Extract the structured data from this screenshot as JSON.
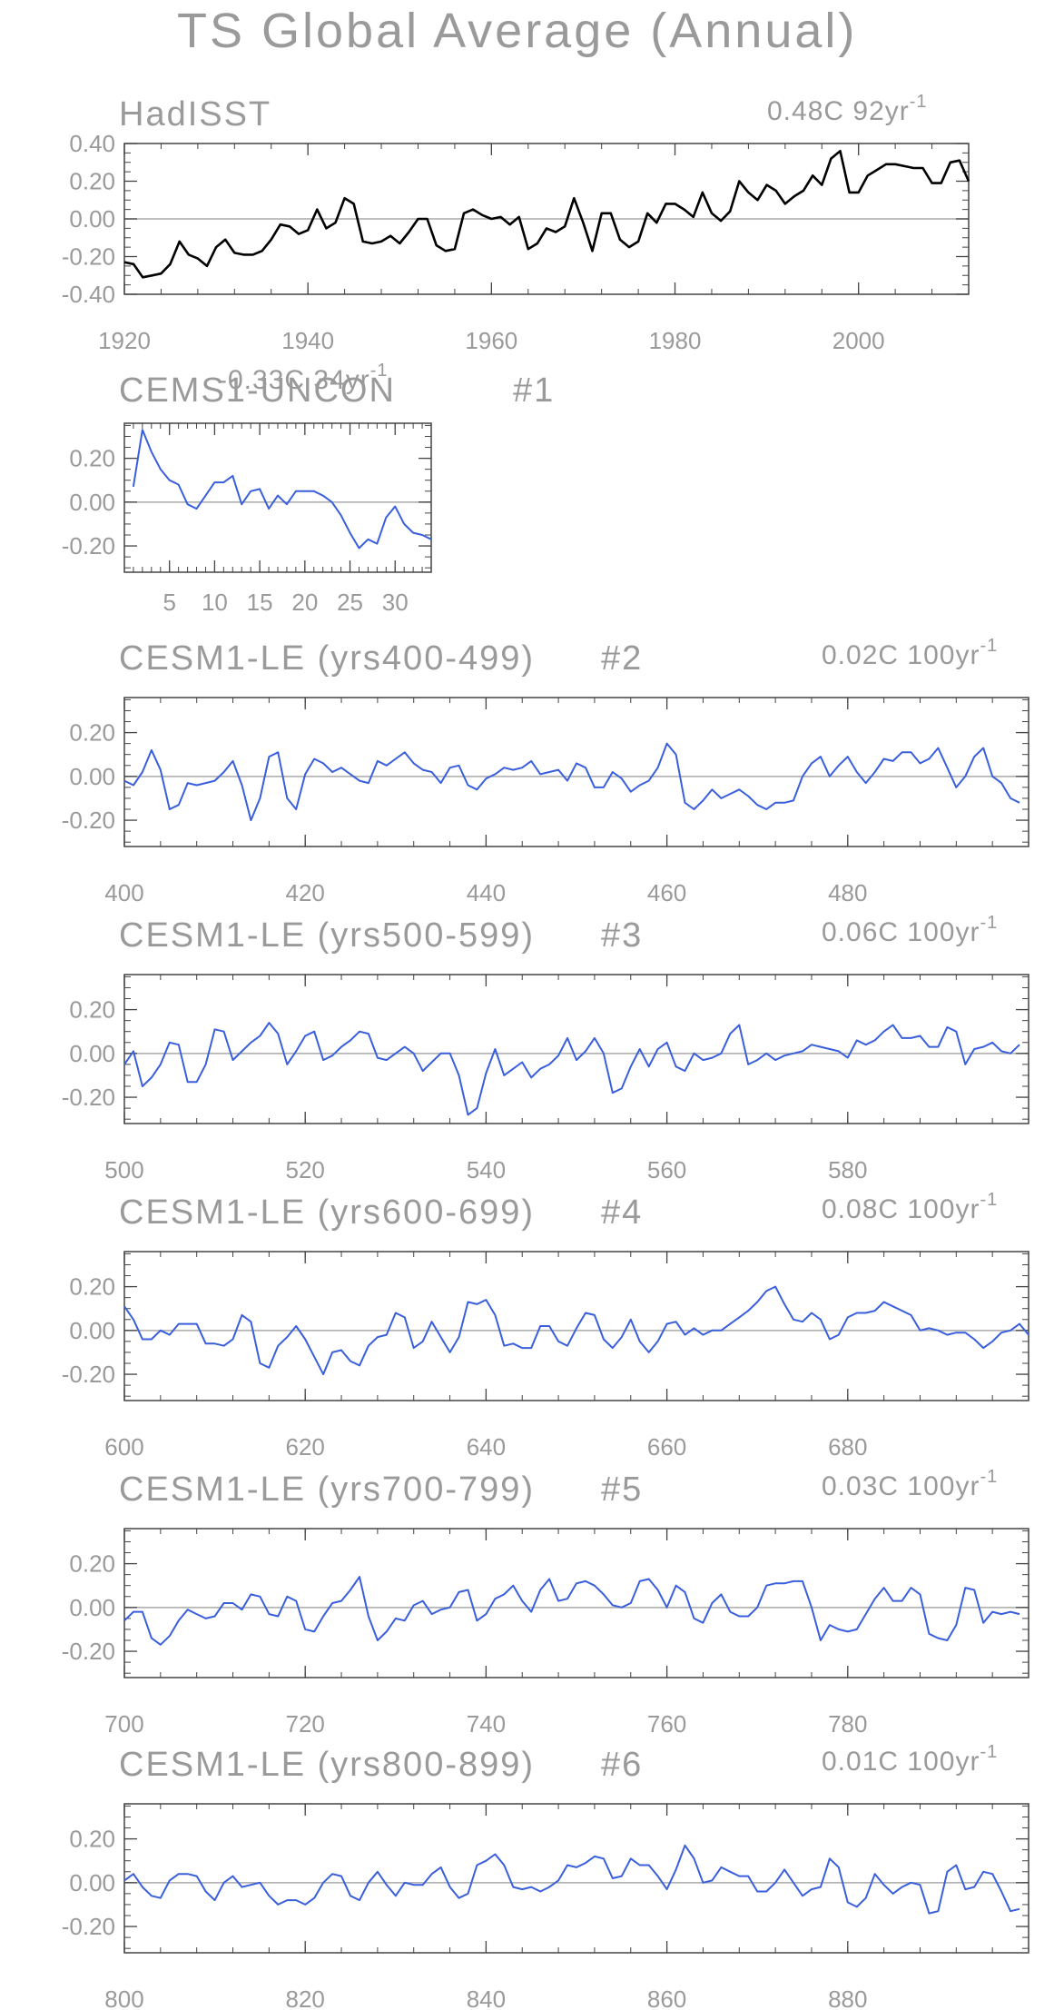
{
  "title": "TS Global Average (Annual)",
  "colors": {
    "observed_line": "#000000",
    "model_line": "#3a5fdc",
    "axis_text": "#9a9a9a",
    "frame": "#444444",
    "zero_line": "#aaaaaa"
  },
  "chart_data": [
    {
      "type": "line",
      "title": "HadISST",
      "trend": "0.48C 92yr",
      "trend_sup": "-1",
      "xlim": [
        1920,
        2012
      ],
      "ylim": [
        -0.4,
        0.4
      ],
      "xticks": [
        1920,
        1940,
        1960,
        1980,
        2000
      ],
      "yticks": [
        -0.4,
        -0.2,
        0.0,
        0.2,
        0.4
      ],
      "ytick_labels": [
        "-0.40",
        "-0.20",
        "0.00",
        "0.20",
        "0.40"
      ],
      "x_start": 1920,
      "values": [
        -0.23,
        -0.24,
        -0.31,
        -0.3,
        -0.29,
        -0.24,
        -0.12,
        -0.19,
        -0.21,
        -0.25,
        -0.15,
        -0.11,
        -0.18,
        -0.19,
        -0.19,
        -0.17,
        -0.11,
        -0.03,
        -0.04,
        -0.08,
        -0.06,
        0.05,
        -0.05,
        -0.02,
        0.11,
        0.08,
        -0.12,
        -0.13,
        -0.12,
        -0.09,
        -0.13,
        -0.07,
        0.0,
        0.0,
        -0.14,
        -0.17,
        -0.16,
        0.03,
        0.05,
        0.02,
        0.0,
        0.01,
        -0.03,
        0.01,
        -0.16,
        -0.13,
        -0.05,
        -0.07,
        -0.04,
        0.11,
        -0.02,
        -0.17,
        0.03,
        0.03,
        -0.11,
        -0.15,
        -0.12,
        0.03,
        -0.02,
        0.08,
        0.08,
        0.05,
        0.01,
        0.14,
        0.03,
        -0.01,
        0.04,
        0.2,
        0.14,
        0.1,
        0.18,
        0.15,
        0.08,
        0.12,
        0.15,
        0.23,
        0.18,
        0.32,
        0.36,
        0.14,
        0.14,
        0.23,
        0.26,
        0.29,
        0.29,
        0.28,
        0.27,
        0.27,
        0.19,
        0.19,
        0.3,
        0.31,
        0.2
      ]
    },
    {
      "type": "line",
      "title": "CEMS1-UNCON",
      "trend": "-0.33C 34yr",
      "trend_sup": "-1",
      "member": "#1",
      "xlim": [
        0,
        34
      ],
      "ylim": [
        -0.32,
        0.36
      ],
      "xticks": [
        5,
        10,
        15,
        20,
        25,
        30
      ],
      "yticks": [
        -0.2,
        0.0,
        0.2
      ],
      "ytick_labels": [
        "-0.20",
        "0.00",
        "0.20"
      ],
      "x_start": 1,
      "values": [
        0.07,
        0.33,
        0.23,
        0.15,
        0.1,
        0.08,
        -0.01,
        -0.03,
        0.03,
        0.09,
        0.09,
        0.12,
        -0.01,
        0.05,
        0.06,
        -0.03,
        0.03,
        -0.01,
        0.05,
        0.05,
        0.05,
        0.03,
        0.0,
        -0.06,
        -0.14,
        -0.21,
        -0.17,
        -0.19,
        -0.07,
        -0.02,
        -0.1,
        -0.14,
        -0.15,
        -0.17
      ]
    },
    {
      "type": "line",
      "title": "CESM1-LE (yrs400-499)",
      "member": "#2",
      "trend": "0.02C 100yr",
      "trend_sup": "-1",
      "xlim": [
        400,
        500
      ],
      "ylim": [
        -0.32,
        0.36
      ],
      "xticks": [
        400,
        420,
        440,
        460,
        480
      ],
      "yticks": [
        -0.2,
        0.0,
        0.2
      ],
      "ytick_labels": [
        "-0.20",
        "0.00",
        "0.20"
      ],
      "x_start": 400,
      "values": [
        -0.02,
        -0.04,
        0.02,
        0.12,
        0.03,
        -0.15,
        -0.13,
        -0.03,
        -0.04,
        -0.03,
        -0.02,
        0.02,
        0.07,
        -0.04,
        -0.2,
        -0.1,
        0.09,
        0.11,
        -0.1,
        -0.15,
        0.01,
        0.08,
        0.06,
        0.02,
        0.04,
        0.01,
        -0.02,
        -0.03,
        0.07,
        0.05,
        0.08,
        0.11,
        0.06,
        0.03,
        0.02,
        -0.03,
        0.04,
        0.05,
        -0.04,
        -0.06,
        -0.01,
        0.01,
        0.04,
        0.03,
        0.04,
        0.07,
        0.01,
        0.02,
        0.03,
        -0.02,
        0.06,
        0.04,
        -0.05,
        -0.05,
        0.02,
        -0.01,
        -0.07,
        -0.04,
        -0.02,
        0.04,
        0.15,
        0.1,
        -0.12,
        -0.15,
        -0.11,
        -0.06,
        -0.1,
        -0.08,
        -0.06,
        -0.09,
        -0.13,
        -0.15,
        -0.12,
        -0.12,
        -0.11,
        0.0,
        0.06,
        0.09,
        0.0,
        0.05,
        0.09,
        0.02,
        -0.03,
        0.02,
        0.08,
        0.07,
        0.11,
        0.11,
        0.06,
        0.08,
        0.13,
        0.04,
        -0.05,
        0.0,
        0.09,
        0.13,
        0.0,
        -0.03,
        -0.1,
        -0.12
      ]
    },
    {
      "type": "line",
      "title": "CESM1-LE (yrs500-599)",
      "member": "#3",
      "trend": "0.06C 100yr",
      "trend_sup": "-1",
      "xlim": [
        500,
        600
      ],
      "ylim": [
        -0.32,
        0.36
      ],
      "xticks": [
        500,
        520,
        540,
        560,
        580
      ],
      "yticks": [
        -0.2,
        0.0,
        0.2
      ],
      "ytick_labels": [
        "-0.20",
        "0.00",
        "0.20"
      ],
      "x_start": 500,
      "values": [
        -0.05,
        0.01,
        -0.15,
        -0.11,
        -0.05,
        0.05,
        0.04,
        -0.13,
        -0.13,
        -0.05,
        0.11,
        0.1,
        -0.03,
        0.01,
        0.05,
        0.08,
        0.14,
        0.09,
        -0.05,
        0.01,
        0.08,
        0.1,
        -0.03,
        -0.01,
        0.03,
        0.06,
        0.1,
        0.09,
        -0.02,
        -0.03,
        0.0,
        0.03,
        0.0,
        -0.08,
        -0.04,
        0.0,
        0.0,
        -0.1,
        -0.28,
        -0.25,
        -0.09,
        0.02,
        -0.1,
        -0.07,
        -0.04,
        -0.11,
        -0.07,
        -0.05,
        -0.01,
        0.07,
        -0.03,
        0.01,
        0.07,
        0.0,
        -0.18,
        -0.16,
        -0.06,
        0.02,
        -0.06,
        0.02,
        0.05,
        -0.06,
        -0.08,
        0.0,
        -0.03,
        -0.02,
        0.0,
        0.09,
        0.13,
        -0.05,
        -0.03,
        0.0,
        -0.03,
        -0.01,
        0.0,
        0.01,
        0.04,
        0.03,
        0.02,
        0.01,
        -0.02,
        0.06,
        0.04,
        0.06,
        0.1,
        0.13,
        0.07,
        0.07,
        0.08,
        0.03,
        0.03,
        0.12,
        0.1,
        -0.05,
        0.02,
        0.03,
        0.05,
        0.01,
        0.0,
        0.04
      ]
    },
    {
      "type": "line",
      "title": "CESM1-LE (yrs600-699)",
      "member": "#4",
      "trend": "0.08C 100yr",
      "trend_sup": "-1",
      "xlim": [
        600,
        700
      ],
      "ylim": [
        -0.32,
        0.36
      ],
      "xticks": [
        600,
        620,
        640,
        660,
        680
      ],
      "yticks": [
        -0.2,
        0.0,
        0.2
      ],
      "ytick_labels": [
        "-0.20",
        "0.00",
        "0.20"
      ],
      "x_start": 600,
      "values": [
        0.11,
        0.05,
        -0.04,
        -0.04,
        0.0,
        -0.02,
        0.03,
        0.03,
        0.03,
        -0.06,
        -0.06,
        -0.07,
        -0.04,
        0.07,
        0.04,
        -0.15,
        -0.17,
        -0.07,
        -0.03,
        0.02,
        -0.04,
        -0.12,
        -0.2,
        -0.1,
        -0.09,
        -0.14,
        -0.16,
        -0.07,
        -0.03,
        -0.02,
        0.08,
        0.06,
        -0.08,
        -0.05,
        0.04,
        -0.03,
        -0.1,
        -0.03,
        0.13,
        0.12,
        0.14,
        0.07,
        -0.07,
        -0.06,
        -0.08,
        -0.08,
        0.02,
        0.02,
        -0.05,
        -0.07,
        0.01,
        0.08,
        0.07,
        -0.04,
        -0.08,
        -0.03,
        0.05,
        -0.05,
        -0.1,
        -0.05,
        0.03,
        0.04,
        -0.02,
        0.01,
        -0.02,
        0.0,
        0.0,
        0.03,
        0.06,
        0.09,
        0.13,
        0.18,
        0.2,
        0.12,
        0.05,
        0.04,
        0.08,
        0.05,
        -0.04,
        -0.02,
        0.06,
        0.08,
        0.08,
        0.09,
        0.13,
        0.11,
        0.09,
        0.07,
        0.0,
        0.01,
        0.0,
        -0.02,
        -0.01,
        -0.01,
        -0.04,
        -0.08,
        -0.05,
        -0.01,
        0.0,
        0.03,
        -0.02
      ]
    },
    {
      "type": "line",
      "title": "CESM1-LE (yrs700-799)",
      "member": "#5",
      "trend": "0.03C 100yr",
      "trend_sup": "-1",
      "xlim": [
        700,
        800
      ],
      "ylim": [
        -0.32,
        0.36
      ],
      "xticks": [
        700,
        720,
        740,
        760,
        780
      ],
      "yticks": [
        -0.2,
        0.0,
        0.2
      ],
      "ytick_labels": [
        "-0.20",
        "0.00",
        "0.20"
      ],
      "x_start": 700,
      "values": [
        -0.06,
        -0.02,
        -0.02,
        -0.14,
        -0.17,
        -0.13,
        -0.06,
        -0.01,
        -0.03,
        -0.05,
        -0.04,
        0.02,
        0.02,
        -0.01,
        0.06,
        0.05,
        -0.03,
        -0.04,
        0.05,
        0.03,
        -0.1,
        -0.11,
        -0.04,
        0.02,
        0.03,
        0.08,
        0.14,
        -0.04,
        -0.15,
        -0.11,
        -0.05,
        -0.06,
        0.01,
        0.03,
        -0.03,
        -0.01,
        0.0,
        0.07,
        0.08,
        -0.06,
        -0.03,
        0.04,
        0.06,
        0.1,
        0.03,
        -0.02,
        0.08,
        0.13,
        0.03,
        0.04,
        0.11,
        0.12,
        0.1,
        0.06,
        0.01,
        0.0,
        0.02,
        0.12,
        0.13,
        0.08,
        0.0,
        0.1,
        0.07,
        -0.05,
        -0.07,
        0.02,
        0.06,
        -0.02,
        -0.04,
        -0.04,
        0.0,
        0.1,
        0.11,
        0.11,
        0.12,
        0.12,
        0.0,
        -0.15,
        -0.08,
        -0.1,
        -0.11,
        -0.1,
        -0.03,
        0.04,
        0.09,
        0.03,
        0.03,
        0.09,
        0.06,
        -0.12,
        -0.14,
        -0.15,
        -0.08,
        0.09,
        0.08,
        -0.07,
        -0.02,
        -0.03,
        -0.02,
        -0.03
      ]
    },
    {
      "type": "line",
      "title": "CESM1-LE (yrs800-899)",
      "member": "#6",
      "trend": "0.01C 100yr",
      "trend_sup": "-1",
      "xlim": [
        800,
        900
      ],
      "ylim": [
        -0.32,
        0.36
      ],
      "xticks": [
        800,
        820,
        840,
        860,
        880
      ],
      "yticks": [
        -0.2,
        0.0,
        0.2
      ],
      "ytick_labels": [
        "-0.20",
        "0.00",
        "0.20"
      ],
      "x_start": 800,
      "values": [
        0.01,
        0.04,
        -0.02,
        -0.06,
        -0.07,
        0.01,
        0.04,
        0.04,
        0.03,
        -0.04,
        -0.08,
        0.0,
        0.03,
        -0.02,
        -0.01,
        0.0,
        -0.06,
        -0.1,
        -0.08,
        -0.08,
        -0.1,
        -0.07,
        0.0,
        0.04,
        0.03,
        -0.06,
        -0.08,
        0.0,
        0.05,
        -0.01,
        -0.06,
        0.0,
        -0.01,
        -0.01,
        0.04,
        0.07,
        -0.02,
        -0.07,
        -0.05,
        0.08,
        0.1,
        0.13,
        0.08,
        -0.02,
        -0.03,
        -0.02,
        -0.04,
        -0.02,
        0.01,
        0.08,
        0.07,
        0.09,
        0.12,
        0.11,
        0.02,
        0.03,
        0.11,
        0.08,
        0.08,
        0.03,
        -0.03,
        0.06,
        0.17,
        0.11,
        0.0,
        0.01,
        0.07,
        0.05,
        0.03,
        0.03,
        -0.04,
        -0.04,
        0.0,
        0.06,
        0.0,
        -0.06,
        -0.03,
        -0.02,
        0.11,
        0.07,
        -0.09,
        -0.11,
        -0.07,
        0.04,
        -0.01,
        -0.05,
        -0.02,
        0.0,
        -0.01,
        -0.14,
        -0.13,
        0.05,
        0.08,
        -0.03,
        -0.02,
        0.05,
        0.04,
        -0.04,
        -0.13,
        -0.12
      ]
    }
  ]
}
